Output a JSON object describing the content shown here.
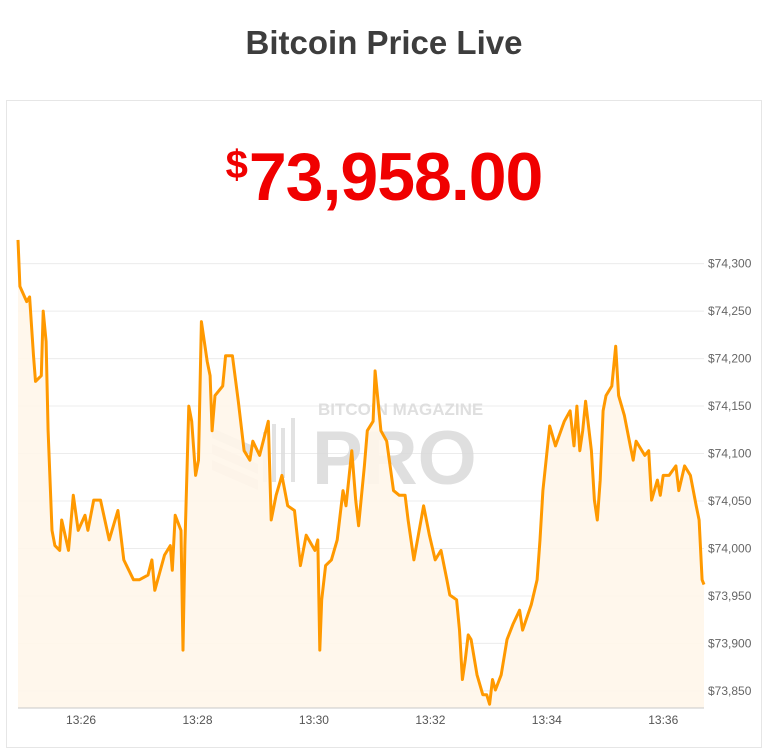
{
  "header": {
    "title": "Bitcoin Price Live"
  },
  "price": {
    "currency_symbol": "$",
    "value": "73,958.00",
    "color": "#f00000"
  },
  "watermark": {
    "line1": "BITCOIN MAGAZINE",
    "line2": "PRO"
  },
  "chart_data": {
    "type": "area",
    "line_color": "#ff9900",
    "fill_color": "#fff6ea",
    "grid": true,
    "xlabel": "",
    "ylabel": "",
    "ylim": [
      73832,
      74327
    ],
    "xlim": [
      "13:24:55",
      "13:36:42"
    ],
    "y_ticks": [
      {
        "value": 74300,
        "label": "$74,300"
      },
      {
        "value": 74250,
        "label": "$74,250"
      },
      {
        "value": 74200,
        "label": "$74,200"
      },
      {
        "value": 74150,
        "label": "$74,150"
      },
      {
        "value": 74100,
        "label": "$74,100"
      },
      {
        "value": 74050,
        "label": "$74,050"
      },
      {
        "value": 74000,
        "label": "$74,000"
      },
      {
        "value": 73950,
        "label": "$73,950"
      },
      {
        "value": 73900,
        "label": "$73,900"
      },
      {
        "value": 73850,
        "label": "$73,850"
      }
    ],
    "x_ticks": [
      {
        "value": "13:26:00",
        "label": "13:26"
      },
      {
        "value": "13:28:00",
        "label": "13:28"
      },
      {
        "value": "13:30:00",
        "label": "13:30"
      },
      {
        "value": "13:32:00",
        "label": "13:32"
      },
      {
        "value": "13:34:00",
        "label": "13:34"
      },
      {
        "value": "13:36:00",
        "label": "13:36"
      }
    ],
    "x": [
      "13:24:55",
      "13:24:57",
      "13:25:04",
      "13:25:07",
      "13:25:11",
      "13:25:13",
      "13:25:19",
      "13:25:21",
      "13:25:24",
      "13:25:26",
      "13:25:30",
      "13:25:33",
      "13:25:38",
      "13:25:40",
      "13:25:47",
      "13:25:52",
      "13:25:57",
      "13:26:04",
      "13:26:07",
      "13:26:13",
      "13:26:20",
      "13:26:29",
      "13:26:38",
      "13:26:44",
      "13:26:54",
      "13:27:00",
      "13:27:09",
      "13:27:13",
      "13:27:16",
      "13:27:26",
      "13:27:32",
      "13:27:34",
      "13:27:37",
      "13:27:43",
      "13:27:45",
      "13:27:47",
      "13:27:51",
      "13:27:54",
      "13:27:58",
      "13:28:01",
      "13:28:04",
      "13:28:10",
      "13:28:13",
      "13:28:15",
      "13:28:18",
      "13:28:26",
      "13:28:29",
      "13:28:36",
      "13:28:42",
      "13:28:48",
      "13:28:54",
      "13:28:57",
      "13:29:04",
      "13:29:13",
      "13:29:16",
      "13:29:21",
      "13:29:27",
      "13:29:33",
      "13:29:40",
      "13:29:46",
      "13:29:52",
      "13:30:01",
      "13:30:04",
      "13:30:06",
      "13:30:08",
      "13:30:12",
      "13:30:18",
      "13:30:24",
      "13:30:30",
      "13:30:33",
      "13:30:39",
      "13:30:43",
      "13:30:46",
      "13:30:52",
      "13:30:55",
      "13:31:01",
      "13:31:03",
      "13:31:09",
      "13:31:15",
      "13:31:22",
      "13:31:28",
      "13:31:34",
      "13:31:37",
      "13:31:43",
      "13:31:53",
      "13:31:59",
      "13:32:05",
      "13:32:11",
      "13:32:17",
      "13:32:20",
      "13:32:27",
      "13:32:30",
      "13:32:33",
      "13:32:36",
      "13:32:39",
      "13:32:42",
      "13:32:48",
      "13:32:54",
      "13:32:58",
      "13:33:01",
      "13:33:04",
      "13:33:07",
      "13:33:13",
      "13:33:19",
      "13:33:25",
      "13:33:32",
      "13:33:35",
      "13:33:44",
      "13:33:50",
      "13:33:53",
      "13:33:56",
      "13:34:03",
      "13:34:09",
      "13:34:18",
      "13:34:24",
      "13:34:28",
      "13:34:31",
      "13:34:34",
      "13:34:37",
      "13:34:40",
      "13:34:46",
      "13:34:49",
      "13:34:52",
      "13:34:55",
      "13:34:58",
      "13:35:01",
      "13:35:07",
      "13:35:11",
      "13:35:14",
      "13:35:20",
      "13:35:26",
      "13:35:29",
      "13:35:32",
      "13:35:41",
      "13:35:45",
      "13:35:48",
      "13:35:54",
      "13:35:57",
      "13:36:00",
      "13:36:06",
      "13:36:13",
      "13:36:16",
      "13:36:22",
      "13:36:28",
      "13:36:34",
      "13:36:37",
      "13:36:40",
      "13:36:42"
    ],
    "values": [
      74325,
      74276,
      74260,
      74265,
      74203,
      74176,
      74182,
      74250,
      74218,
      74124,
      74019,
      74003,
      73998,
      74030,
      73998,
      74056,
      74019,
      74035,
      74019,
      74051,
      74051,
      74009,
      74040,
      73988,
      73967,
      73967,
      73972,
      73988,
      73956,
      73993,
      74003,
      73977,
      74035,
      74019,
      73893,
      74003,
      74150,
      74134,
      74077,
      74093,
      74239,
      74197,
      74182,
      74124,
      74161,
      74171,
      74203,
      74203,
      74155,
      74103,
      74093,
      74113,
      74098,
      74134,
      74030,
      74056,
      74077,
      74045,
      74040,
      73982,
      74014,
      73998,
      74009,
      73893,
      73946,
      73982,
      73988,
      74009,
      74061,
      74045,
      74103,
      74051,
      74024,
      74087,
      74124,
      74134,
      74187,
      74124,
      74113,
      74061,
      74056,
      74056,
      74030,
      73988,
      74045,
      74014,
      73988,
      73998,
      73967,
      73951,
      73946,
      73914,
      73862,
      73883,
      73909,
      73904,
      73867,
      73846,
      73846,
      73836,
      73862,
      73851,
      73867,
      73904,
      73920,
      73935,
      73914,
      73941,
      73967,
      74009,
      74061,
      74129,
      74108,
      74134,
      74145,
      74108,
      74150,
      74103,
      74124,
      74155,
      74103,
      74051,
      74030,
      74072,
      74145,
      74161,
      74171,
      74213,
      74161,
      74140,
      74108,
      74093,
      74113,
      74098,
      74103,
      74051,
      74072,
      74056,
      74077,
      74077,
      74087,
      74061,
      74087,
      74077,
      74045,
      74030,
      73967,
      73962
    ]
  }
}
